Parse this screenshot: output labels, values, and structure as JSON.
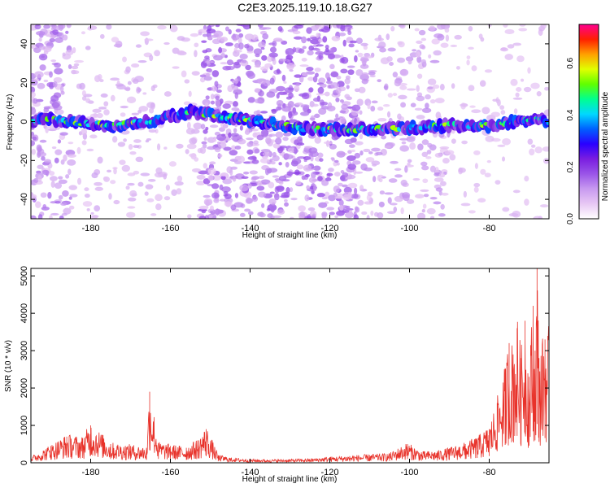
{
  "figure": {
    "title": "C2E3.2025.119.10.18.G27"
  },
  "chart_data": [
    {
      "type": "heatmap",
      "xlabel": "Height of straight line (km)",
      "ylabel": "Frequency (Hz)",
      "xlim": [
        -195,
        -65
      ],
      "ylim": [
        -50,
        50
      ],
      "x_ticks": [
        -180,
        -160,
        -140,
        -120,
        -100,
        -80
      ],
      "y_ticks": [
        -40,
        -20,
        0,
        20,
        40
      ],
      "colorbar": {
        "label": "Normalized spectral amplitude",
        "range": [
          0.0,
          0.75
        ],
        "ticks": [
          0.0,
          0.2,
          0.4,
          0.6
        ],
        "colormap": [
          "#ffffff",
          "#e8c8f4",
          "#c89af0",
          "#9a55e8",
          "#7a1ee0",
          "#2a00ff",
          "#0060ff",
          "#00d8ff",
          "#00ff90",
          "#60ff00",
          "#e0ff00",
          "#ffa000",
          "#ff2000",
          "#ff0090"
        ]
      },
      "signal_band": {
        "description_free": true,
        "center_frequency_hz": [
          [
            -193,
            2
          ],
          [
            -185,
            0
          ],
          [
            -175,
            -2
          ],
          [
            -165,
            0
          ],
          [
            -155,
            5
          ],
          [
            -125,
            -4
          ],
          [
            -110,
            -4
          ],
          [
            -100,
            -3
          ],
          [
            -90,
            -2
          ],
          [
            -80,
            -2
          ],
          [
            -70,
            1
          ],
          [
            -66,
            2
          ]
        ],
        "half_width_hz": 4
      },
      "noise_columns": [
        {
          "x_range": [
            -195,
            -185
          ],
          "level": 0.8
        },
        {
          "x_range": [
            -185,
            -165
          ],
          "level": 0.35
        },
        {
          "x_range": [
            -165,
            -152
          ],
          "level": 0.25
        },
        {
          "x_range": [
            -152,
            -113
          ],
          "level": 1.0
        },
        {
          "x_range": [
            -113,
            -90
          ],
          "level": 0.55
        },
        {
          "x_range": [
            -90,
            -65
          ],
          "level": 0.2
        }
      ]
    },
    {
      "type": "line",
      "xlabel": "Height of straight line (km)",
      "ylabel": "SNR (10 * v/v)",
      "xlim": [
        -195,
        -65
      ],
      "ylim": [
        0,
        5200
      ],
      "x_ticks": [
        -180,
        -160,
        -140,
        -120,
        -100,
        -80
      ],
      "y_ticks": [
        0,
        1000,
        2000,
        3000,
        4000,
        5000
      ],
      "color": "#e8322a",
      "series": [
        {
          "x": [
            -195,
            -190,
            -186,
            -182,
            -180,
            -175,
            -170,
            -166,
            -165.2,
            -163,
            -160,
            -156,
            -153,
            -151,
            -148,
            -145,
            -140,
            -135,
            -130,
            -125,
            -120,
            -115,
            -110,
            -105,
            -100.5,
            -97,
            -93,
            -90,
            -86,
            -83,
            -80,
            -78,
            -76,
            -75,
            -74,
            -73,
            -72,
            -71,
            -70,
            -69,
            -68.5,
            -68,
            -67.5,
            -66,
            -65
          ],
          "y": [
            150,
            450,
            700,
            650,
            1000,
            500,
            450,
            400,
            1900,
            520,
            450,
            400,
            600,
            900,
            200,
            130,
            90,
            80,
            90,
            100,
            150,
            180,
            210,
            240,
            500,
            280,
            300,
            380,
            500,
            650,
            900,
            1600,
            2400,
            3200,
            2900,
            3600,
            2800,
            3800,
            2300,
            4200,
            3000,
            5200,
            2800,
            3300,
            3400
          ]
        }
      ]
    }
  ]
}
